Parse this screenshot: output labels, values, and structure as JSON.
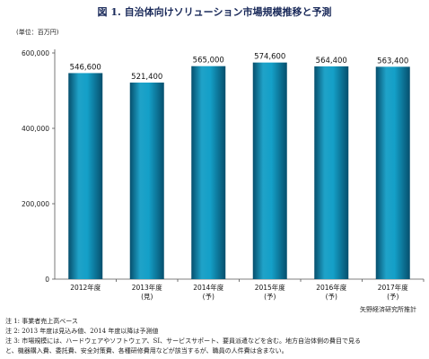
{
  "title": "図 1. 自治体向けソリューション市場規模推移と予測",
  "unit_label": "(単位：百万円)",
  "source": "矢野経済研究所推計",
  "notes": [
    "注 1:  事業者売上高ベース",
    "注 2:  2013 年度は見込み値、2014 年度以降は予測値",
    "注 3: 市場規模には、ハードウェアやソフトウェア、SI、サービスサポート、要員派遣などを含む。地方自治体側の費目で見る",
    "と、機器購入費、委託費、安全対策費、各種研修費用などが該当するが、職員の人件費は含まない。"
  ],
  "colors": {
    "bar_top": "#1fa2c8",
    "bar_mid": "#0b7fa6",
    "bar_dark": "#064f6d",
    "title": "#1a2a5a"
  },
  "chart_data": {
    "type": "bar",
    "title": "図 1. 自治体向けソリューション市場規模推移と予測",
    "xlabel": "",
    "ylabel": "",
    "categories": [
      "2012年度",
      "2013年度",
      "2014年度",
      "2015年度",
      "2016年度",
      "2017年度"
    ],
    "category_sublabels": [
      "",
      "(見)",
      "(予)",
      "(予)",
      "(予)",
      "(予)"
    ],
    "values": [
      546600,
      521400,
      565000,
      574600,
      564400,
      563400
    ],
    "value_labels": [
      "546,600",
      "521,400",
      "565,000",
      "574,600",
      "564,400",
      "563,400"
    ],
    "yticks": [
      0,
      200000,
      400000,
      600000
    ],
    "ytick_labels": [
      "0",
      "200,000",
      "400,000",
      "600,000"
    ],
    "ylim": [
      0,
      600000
    ],
    "grid": false,
    "legend": "none"
  }
}
